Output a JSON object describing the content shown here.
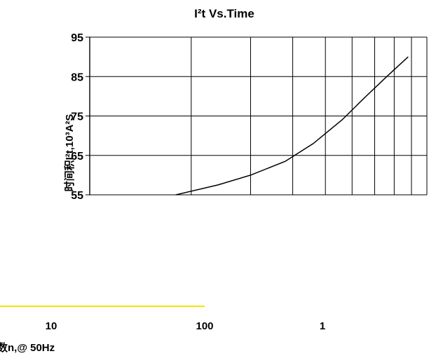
{
  "chart_data": {
    "type": "line",
    "title": "I²t Vs.Time",
    "xlabel": "数n,@ 50Hz",
    "ylabel": "时间积I²t,10³A²S",
    "xscale": "log",
    "ylim": [
      55,
      95
    ],
    "yticks": [
      95,
      85,
      75,
      65,
      55
    ],
    "xtick_labels": [
      "10",
      "100",
      "1"
    ],
    "grid": true,
    "series": [
      {
        "values": [
          {
            "x": 1.8,
            "y": 55.0
          },
          {
            "x": 2.4,
            "y": 57.5
          },
          {
            "x": 3.0,
            "y": 60.0
          },
          {
            "x": 3.8,
            "y": 63.5
          },
          {
            "x": 4.6,
            "y": 68.0
          },
          {
            "x": 5.6,
            "y": 74.0
          },
          {
            "x": 6.6,
            "y": 80.0
          },
          {
            "x": 7.6,
            "y": 85.0
          },
          {
            "x": 8.8,
            "y": 90.0
          }
        ]
      }
    ]
  }
}
